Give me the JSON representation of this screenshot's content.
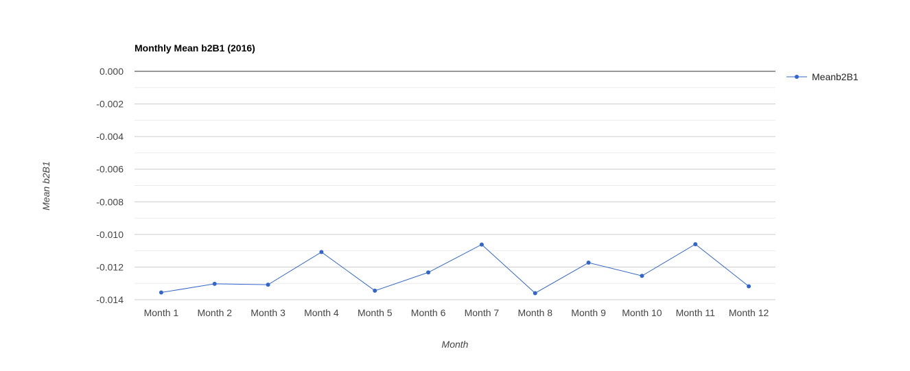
{
  "chart_data": {
    "type": "line",
    "title": "Monthly Mean b2B1 (2016)",
    "xlabel": "Month",
    "ylabel": "Mean b2B1",
    "categories": [
      "Month 1",
      "Month 2",
      "Month 3",
      "Month 4",
      "Month 5",
      "Month 6",
      "Month 7",
      "Month 8",
      "Month 9",
      "Month 10",
      "Month 11",
      "Month 12"
    ],
    "series": [
      {
        "name": "Meanb2B1",
        "color": "#3366cc",
        "values": [
          -0.01356,
          -0.01303,
          -0.01308,
          -0.01108,
          -0.01345,
          -0.01233,
          -0.01062,
          -0.0136,
          -0.01173,
          -0.01254,
          -0.0106,
          -0.01318
        ]
      }
    ],
    "ylim": [
      -0.014,
      0.0
    ],
    "yticks": [
      "0.000",
      "-0.002",
      "-0.004",
      "-0.006",
      "-0.008",
      "-0.010",
      "-0.012",
      "-0.014"
    ],
    "grid": true,
    "legend_position": "right"
  }
}
